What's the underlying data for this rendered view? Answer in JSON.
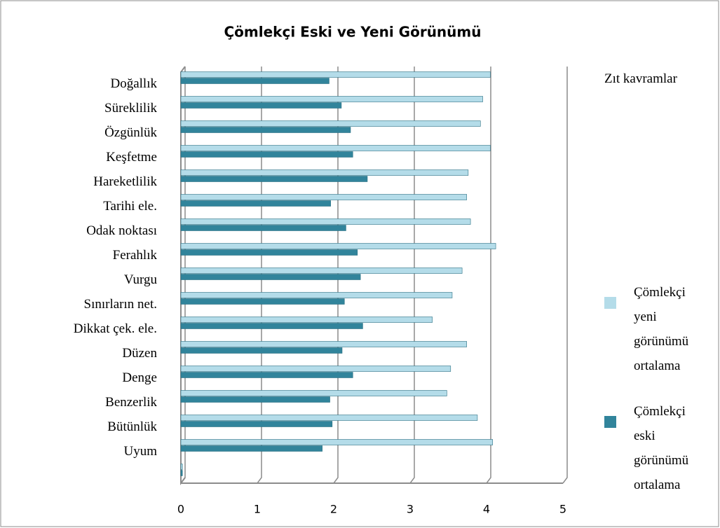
{
  "chart_data": {
    "type": "bar",
    "orientation": "horizontal",
    "title": "Çömlekçi Eski ve Yeni Görünümü",
    "legend_title": "Zıt kavramlar",
    "categories": [
      "Doğallık",
      "Süreklilik",
      "Özgünlük",
      "Keşfetme",
      "Hareketlilik",
      "Tarihi ele.",
      "Odak noktası",
      "Ferahlık",
      "Vurgu",
      "Sınırların net.",
      "Dikkat çek. ele.",
      "Düzen",
      "Denge",
      "Benzerlik",
      "Bütünlük",
      "Uyum",
      null
    ],
    "series": [
      {
        "name": "Çömlekçi yeni görünümü ortalama",
        "color": "#b4dce9",
        "values": [
          4.05,
          3.95,
          3.92,
          4.05,
          3.76,
          3.74,
          3.79,
          4.12,
          3.68,
          3.55,
          3.29,
          3.74,
          3.53,
          3.48,
          3.88,
          4.08,
          0.02
        ]
      },
      {
        "name": "Çömlekçi eski görünümü ortalama",
        "color": "#31849b",
        "values": [
          1.94,
          2.1,
          2.22,
          2.25,
          2.44,
          1.96,
          2.16,
          2.31,
          2.35,
          2.14,
          2.38,
          2.11,
          2.25,
          1.95,
          1.98,
          1.85,
          0.02
        ]
      }
    ],
    "xlim": [
      0,
      5
    ],
    "xticks": [
      0,
      1,
      2,
      3,
      4,
      5
    ],
    "grid": true,
    "legend": "right"
  }
}
